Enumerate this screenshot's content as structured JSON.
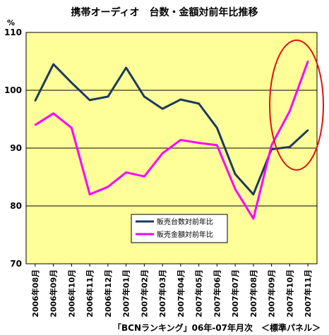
{
  "chart_data": {
    "type": "line",
    "title": "携帯オーディオ　台数・金額対前年比推移",
    "yunit": "%",
    "ylim": [
      70,
      110
    ],
    "yticks": [
      70,
      80,
      90,
      100,
      110
    ],
    "grid": true,
    "legend_position": "bottom-center",
    "categories": [
      "2006年08月",
      "2006年09月",
      "2006年10月",
      "2006年11月",
      "2006年12月",
      "2007年01月",
      "2007年02月",
      "2007年03月",
      "2007年04月",
      "2007年05月",
      "2007年06月",
      "2007年07月",
      "2007年08月",
      "2007年09月",
      "2007年10月",
      "2007年11月"
    ],
    "series": [
      {
        "name": "販売台数対前年比",
        "color": "#1b3a5c",
        "values": [
          98.2,
          104.5,
          101.3,
          98.3,
          98.9,
          103.9,
          98.9,
          96.8,
          98.4,
          97.7,
          93.5,
          85.5,
          82.0,
          89.8,
          90.2,
          93.1
        ]
      },
      {
        "name": "販売金額対前年比",
        "color": "#ff00ff",
        "values": [
          94.0,
          96.0,
          93.5,
          82.0,
          83.3,
          85.8,
          85.1,
          89.1,
          91.4,
          90.9,
          90.5,
          82.9,
          77.8,
          90.5,
          96.4,
          105.0
        ]
      }
    ],
    "source": "「BCNランキング」06年-07年月次　＜標準パネル＞",
    "plot_bg": "#ffff99",
    "highlight_color": "#e01010"
  }
}
